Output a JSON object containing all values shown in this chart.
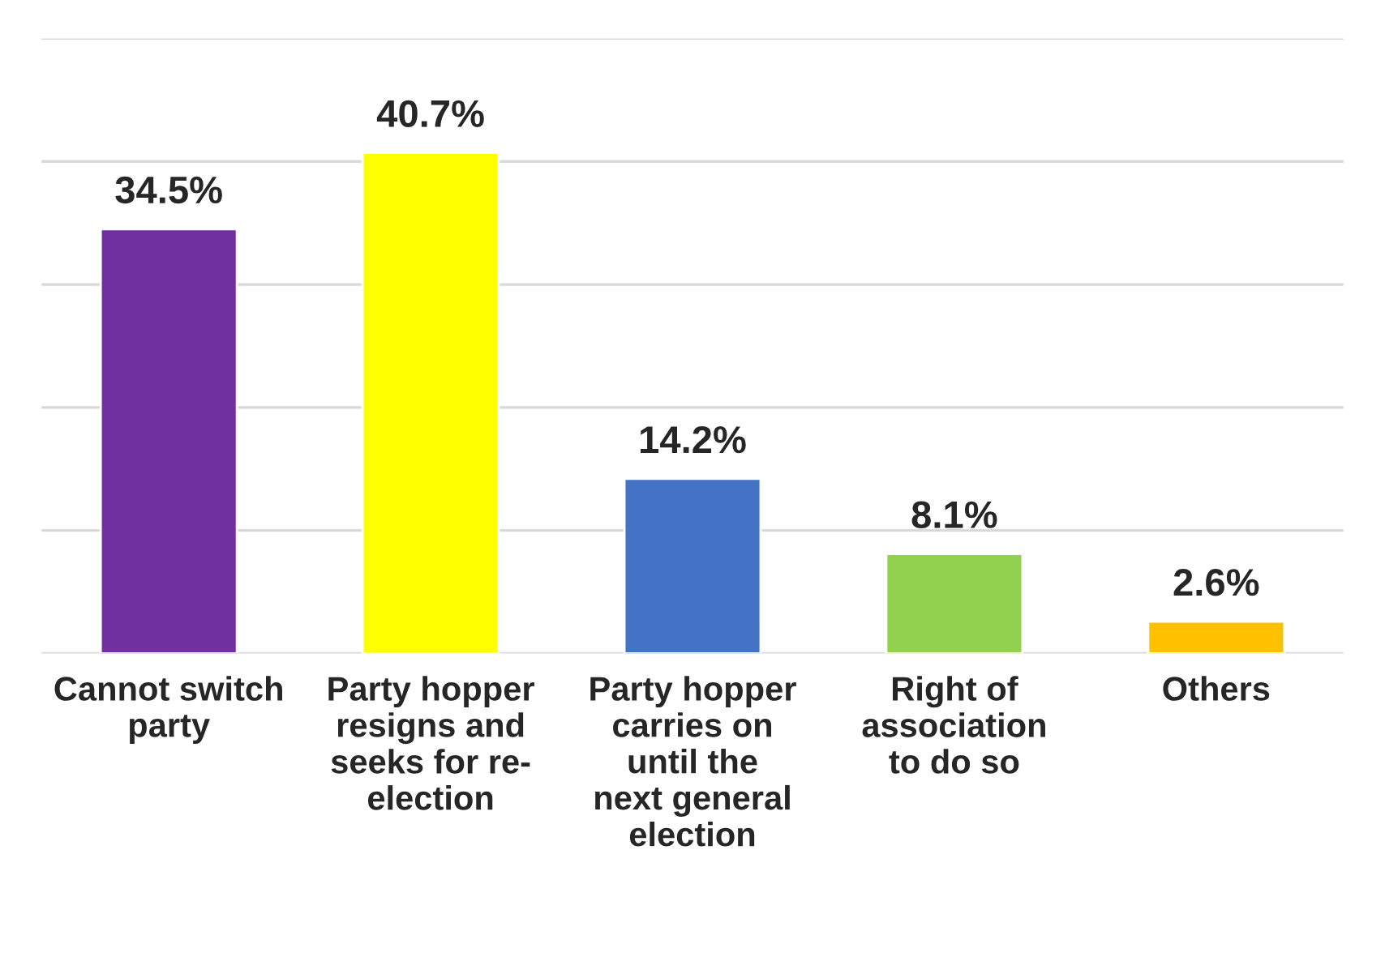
{
  "chart_data": {
    "type": "bar",
    "categories": [
      "Cannot switch party",
      "Party hopper resigns and seeks for re-election",
      "Party hopper carries on until the next general election",
      "Right of association to do so",
      "Others"
    ],
    "values": [
      34.5,
      40.7,
      14.2,
      8.1,
      2.6
    ],
    "value_labels": [
      "34.5%",
      "40.7%",
      "14.2%",
      "8.1%",
      "2.6%"
    ],
    "colors": [
      "#7030a0",
      "#ffff00",
      "#4472c4",
      "#92d050",
      "#ffc000"
    ],
    "ylim": [
      0,
      50
    ],
    "yticks": [
      {
        "value": 0,
        "label": null
      },
      {
        "value": 10,
        "label": null
      },
      {
        "value": 20,
        "label": null
      },
      {
        "value": 30,
        "label": null
      },
      {
        "value": 40,
        "label": null
      },
      {
        "value": 50,
        "label": null
      }
    ],
    "tick_labels": "x",
    "grid": "y",
    "legend": false
  }
}
